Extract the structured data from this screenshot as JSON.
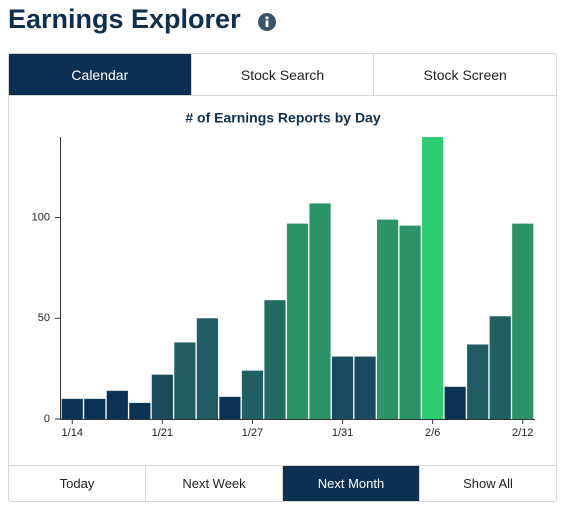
{
  "header": {
    "title": "Earnings Explorer"
  },
  "tabs": [
    "Calendar",
    "Stock Search",
    "Stock Screen"
  ],
  "active_tab": 0,
  "chart_data": {
    "type": "bar",
    "title": "# of Earnings Reports by Day",
    "categories": [
      "1/14",
      null,
      null,
      null,
      "1/21",
      null,
      null,
      null,
      "1/27",
      null,
      null,
      null,
      "1/31",
      null,
      null,
      null,
      "2/6",
      null,
      null,
      null,
      "2/12"
    ],
    "values": [
      10,
      10,
      14,
      8,
      22,
      38,
      50,
      11,
      24,
      59,
      97,
      107,
      31,
      31,
      99,
      96,
      140,
      16,
      37,
      51,
      97
    ],
    "colors": [
      "#0b3354",
      "#0b3354",
      "#0b3354",
      "#0b3354",
      "#1a4b5d",
      "#1f5b62",
      "#1f5b62",
      "#0b3354",
      "#1f5f64",
      "#236b62",
      "#2a9468",
      "#2a9468",
      "#1a4a5d",
      "#1a4a5d",
      "#2a9468",
      "#2a9468",
      "#2ecc71",
      "#0b3354",
      "#1f5b62",
      "#1f5f64",
      "#2a9468"
    ],
    "ylim": [
      0,
      140
    ],
    "yticks": [
      0,
      50,
      100
    ],
    "grid": false
  },
  "range_buttons": [
    "Today",
    "Next Week",
    "Next Month",
    "Show All"
  ],
  "active_range": 2
}
